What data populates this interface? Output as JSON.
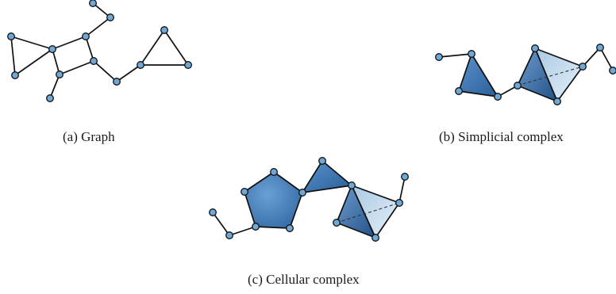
{
  "figure": {
    "captions": {
      "graph": "(a) Graph",
      "simplicial": "(b) Simplicial complex",
      "cellular": "(c) Cellular complex"
    }
  },
  "colors": {
    "node_fill": "#6fa8d6",
    "face_dark": "#2f6aa8",
    "face_mid": "#4d86c0",
    "face_light": "#c7dcec",
    "stroke": "#111111"
  }
}
